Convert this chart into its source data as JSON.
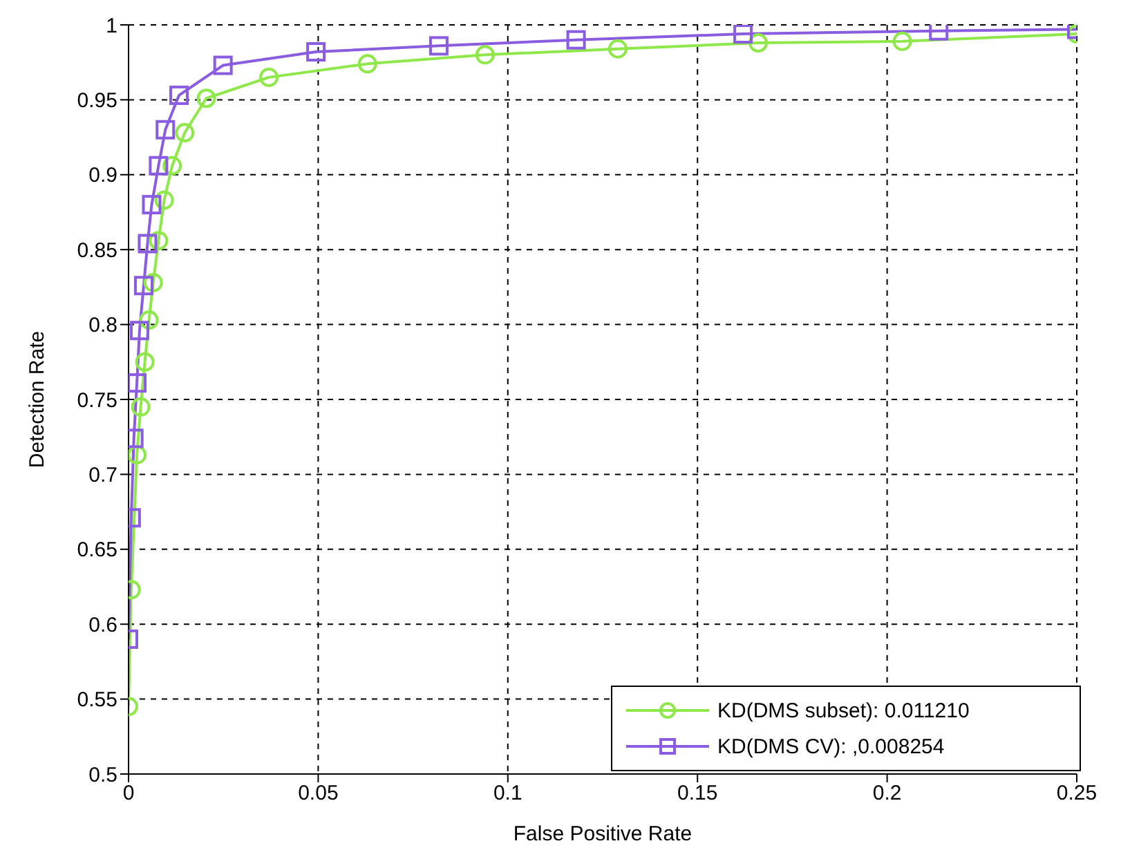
{
  "chart_data": {
    "type": "line",
    "xlabel": "False Positive Rate",
    "ylabel": "Detection Rate",
    "xlim": [
      0,
      0.25
    ],
    "xticks": [
      0,
      0.05,
      0.1,
      0.15,
      0.2,
      0.25
    ],
    "ylim": [
      0.5,
      1
    ],
    "yticks": [
      0.5,
      0.55,
      0.6,
      0.65,
      0.7,
      0.75,
      0.8,
      0.85,
      0.9,
      0.95,
      1
    ],
    "grid": true,
    "legend": "bottom right",
    "series": [
      {
        "name": "KD(DMS subset): 0.011210",
        "color": "#8ee84a",
        "marker": "circle",
        "x": [
          0,
          0.0007,
          0.0022,
          0.0032,
          0.0043,
          0.0054,
          0.0065,
          0.0079,
          0.0094,
          0.0115,
          0.0148,
          0.0205,
          0.037,
          0.063,
          0.094,
          0.129,
          0.166,
          0.204,
          0.25
        ],
        "values": [
          0.545,
          0.623,
          0.713,
          0.745,
          0.775,
          0.803,
          0.828,
          0.856,
          0.883,
          0.906,
          0.928,
          0.951,
          0.965,
          0.974,
          0.98,
          0.984,
          0.988,
          0.989,
          0.994
        ]
      },
      {
        "name": "KD(DMS CV): ,0.008254",
        "color": "#8a5ce0",
        "marker": "square",
        "x": [
          0,
          0.0007,
          0.0014,
          0.0022,
          0.0029,
          0.004,
          0.005,
          0.0061,
          0.0079,
          0.0097,
          0.0133,
          0.0249,
          0.0494,
          0.0818,
          0.118,
          0.162,
          0.2136,
          0.25
        ],
        "values": [
          0.59,
          0.671,
          0.724,
          0.761,
          0.796,
          0.826,
          0.854,
          0.88,
          0.906,
          0.93,
          0.953,
          0.973,
          0.982,
          0.986,
          0.99,
          0.994,
          0.996,
          0.997
        ]
      }
    ]
  }
}
